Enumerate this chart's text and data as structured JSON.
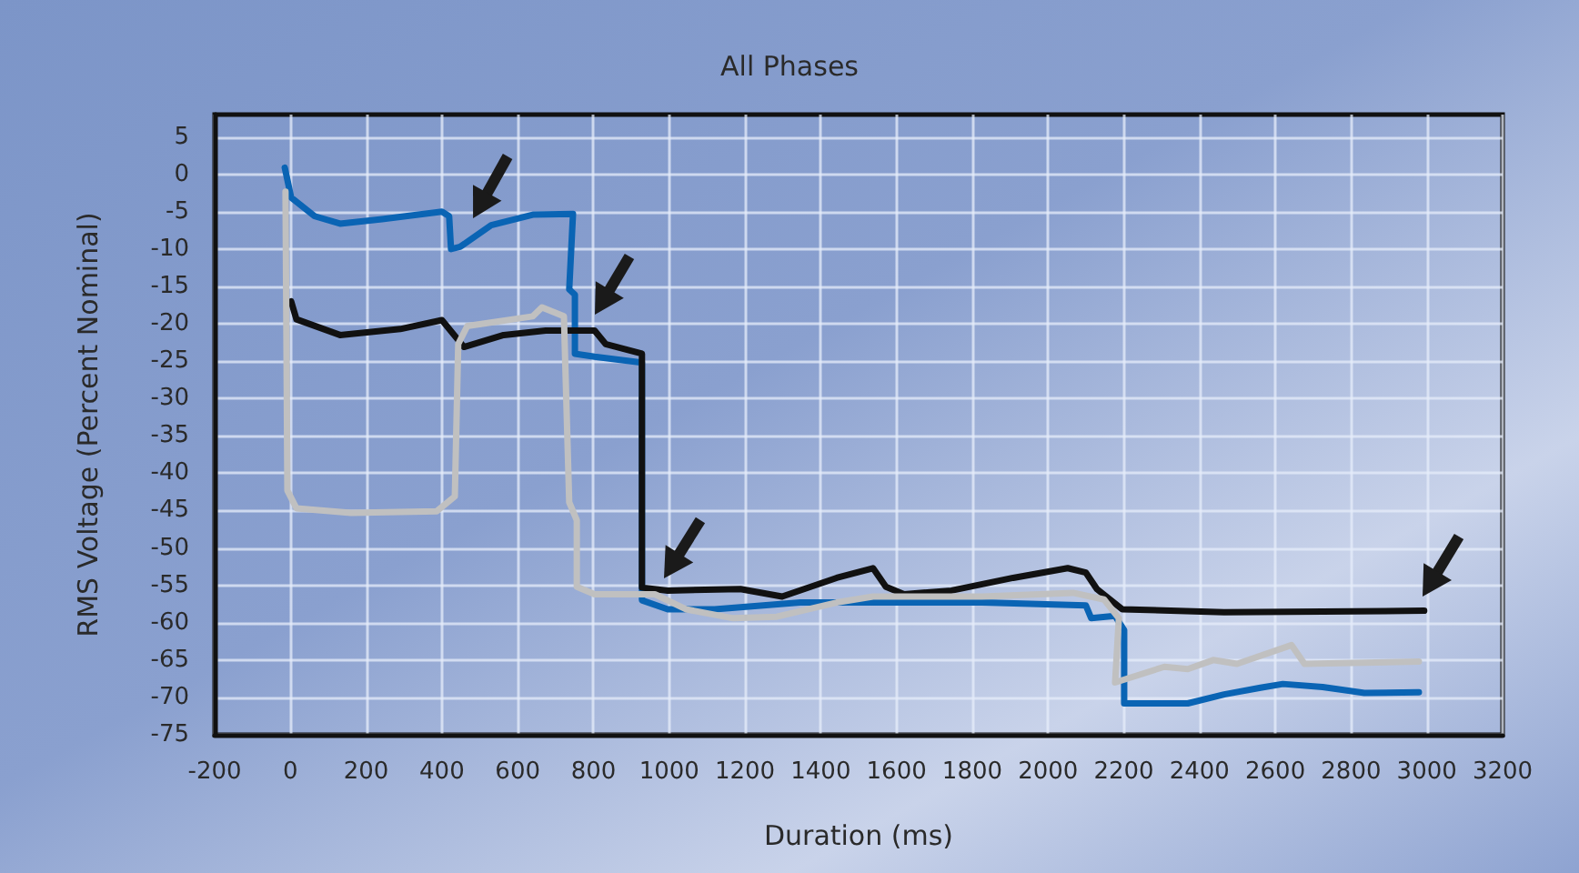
{
  "chart_data": {
    "type": "line",
    "title": "All Phases",
    "xlabel": "Duration (ms)",
    "ylabel": "RMS Voltage (Percent Nominal)",
    "xlim": [
      -200,
      3200
    ],
    "xticks": [
      -200,
      0,
      200,
      400,
      600,
      800,
      1000,
      1200,
      1400,
      1600,
      1800,
      2000,
      2200,
      2400,
      2600,
      2800,
      3000,
      3200
    ],
    "ylim": [
      -75,
      8
    ],
    "yticks": [
      -75,
      -70,
      -65,
      -60,
      -55,
      -50,
      -45,
      -40,
      -35,
      -30,
      -25,
      -20,
      -15,
      -10,
      -5,
      0,
      5
    ],
    "grid": true,
    "marker": "none",
    "line_style": "solid",
    "series": [
      {
        "color": "#0a64b4",
        "x": [
          -15,
          2,
          64,
          131,
          242,
          400,
          419,
          424,
          448,
          530,
          640,
          746,
          736,
          751,
          751,
          803,
          928,
          928,
          996,
          1120,
          1346,
          1826,
          2100,
          2114,
          2177,
          2201,
          2201,
          2244,
          2369,
          2465,
          2561,
          2620,
          2725,
          2835,
          2979
        ],
        "values": [
          0.9,
          -3.1,
          -5.6,
          -6.6,
          -6,
          -5,
          -5.6,
          -10,
          -9.7,
          -6.8,
          -5.4,
          -5.3,
          -15.4,
          -16.1,
          -24,
          -24.4,
          -25.2,
          -57,
          -58.2,
          -58.2,
          -57.3,
          -57.3,
          -57.7,
          -59.4,
          -59.1,
          -61,
          -70.8,
          -70.8,
          -70.8,
          -69.6,
          -68.7,
          -68.2,
          -68.6,
          -69.4,
          -69.3
        ]
      },
      {
        "color": "#111111",
        "x": [
          2,
          16,
          131,
          290,
          400,
          458,
          563,
          674,
          803,
          832,
          928,
          928,
          996,
          1188,
          1298,
          1442,
          1538,
          1572,
          1620,
          1745,
          1908,
          2052,
          2100,
          2129,
          2196,
          2465,
          2993
        ],
        "values": [
          -17,
          -19.4,
          -21.5,
          -20.7,
          -19.5,
          -23.1,
          -21.5,
          -20.9,
          -20.9,
          -22.7,
          -24,
          -55.3,
          -55.7,
          -55.5,
          -56.5,
          -54,
          -52.7,
          -55.2,
          -56.2,
          -55.7,
          -54,
          -52.7,
          -53.3,
          -55.5,
          -58.2,
          -58.6,
          -58.4
        ]
      },
      {
        "color": "#c0c0c0",
        "x": [
          -13,
          -8,
          16,
          160,
          386,
          434,
          443,
          467,
          640,
          664,
          722,
          736,
          756,
          756,
          803,
          962,
          1044,
          1169,
          1284,
          1442,
          1538,
          1826,
          2066,
          2148,
          2187,
          2177,
          2307,
          2369,
          2436,
          2499,
          2643,
          2677,
          2979
        ],
        "values": [
          -2.3,
          -42.3,
          -44.7,
          -45.3,
          -45.1,
          -43.1,
          -22.7,
          -20.3,
          -19,
          -17.8,
          -19,
          -43.9,
          -46.3,
          -55.2,
          -56.2,
          -56.2,
          -58.2,
          -59.4,
          -59.2,
          -57.3,
          -56.5,
          -56.5,
          -56,
          -56.9,
          -59.4,
          -68,
          -65.9,
          -66.2,
          -65,
          -65.5,
          -63,
          -65.5,
          -65.2
        ]
      }
    ]
  }
}
